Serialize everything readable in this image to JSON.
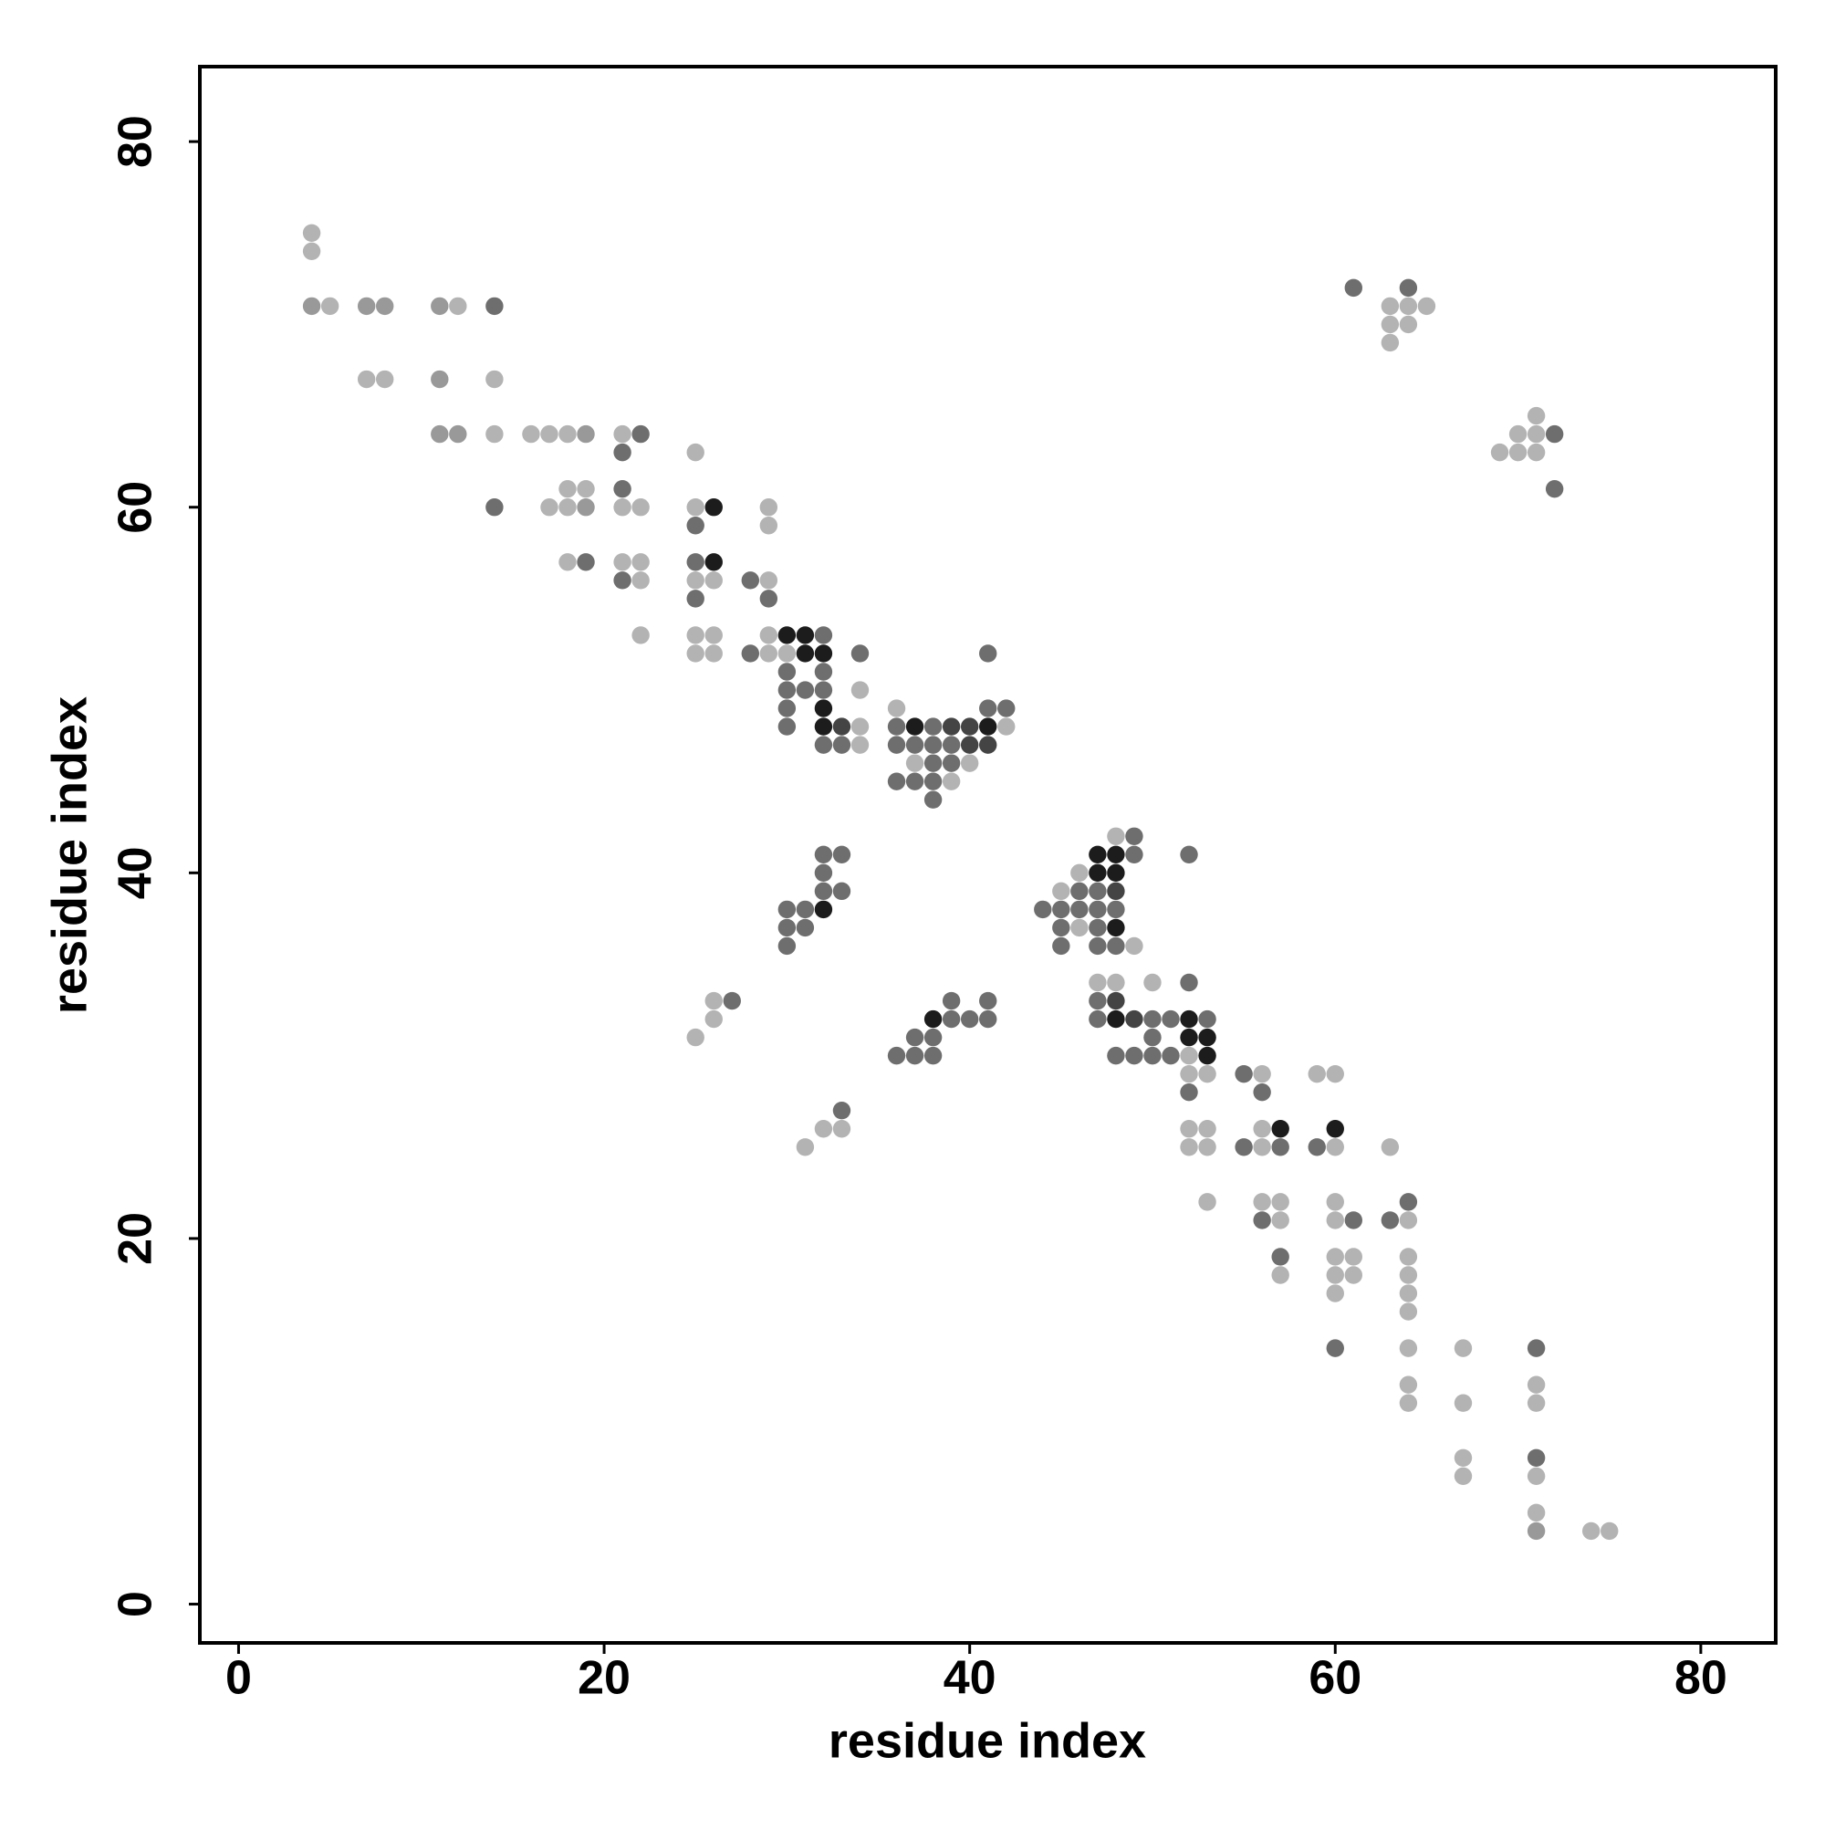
{
  "chart_data": {
    "type": "scatter",
    "xlabel": "residue index",
    "ylabel": "residue index",
    "xlim": [
      -2.12,
      84.1
    ],
    "ylim": [
      -2.12,
      84.1
    ],
    "xticks": [
      0,
      20,
      40,
      60,
      80
    ],
    "yticks": [
      0,
      20,
      40,
      60,
      80
    ],
    "grid": false,
    "series": [
      {
        "color": "#b3b3b3",
        "x": [
          4,
          4,
          5,
          12,
          63,
          64,
          65,
          63,
          64,
          63,
          7,
          8,
          14,
          71,
          14,
          16,
          17,
          18,
          21,
          70,
          71,
          25,
          69,
          70,
          71,
          18,
          19,
          17,
          18,
          21,
          22,
          25,
          29,
          29,
          18,
          21,
          22,
          22,
          25,
          26,
          29,
          22,
          25,
          26,
          29,
          25,
          26,
          29,
          30,
          34,
          36,
          34,
          42,
          34,
          37,
          40,
          39,
          48,
          46,
          45,
          46,
          49,
          47,
          48,
          50,
          26,
          26,
          25,
          52,
          52,
          53,
          56,
          59,
          60,
          32,
          33,
          52,
          53,
          56,
          31,
          52,
          53,
          56,
          60,
          63,
          53,
          56,
          57,
          60,
          57,
          60,
          64,
          60,
          61,
          64,
          57,
          60,
          61,
          64,
          60,
          64,
          64,
          64,
          67,
          64,
          71,
          64,
          67,
          71,
          67,
          67,
          71,
          71,
          74,
          75
        ],
        "y": [
          75,
          74,
          71,
          71,
          71,
          71,
          71,
          70,
          70,
          69,
          67,
          67,
          67,
          65,
          64,
          64,
          64,
          64,
          64,
          64,
          64,
          63,
          63,
          63,
          63,
          61,
          61,
          60,
          60,
          60,
          60,
          60,
          60,
          59,
          57,
          57,
          57,
          56,
          56,
          56,
          56,
          53,
          53,
          53,
          53,
          52,
          52,
          52,
          52,
          50,
          49,
          48,
          48,
          47,
          46,
          46,
          45,
          42,
          40,
          39,
          37,
          36,
          34,
          34,
          34,
          33,
          32,
          31,
          30,
          29,
          29,
          29,
          29,
          29,
          26,
          26,
          26,
          26,
          26,
          25,
          25,
          25,
          25,
          25,
          25,
          22,
          22,
          22,
          22,
          21,
          21,
          21,
          19,
          19,
          19,
          18,
          18,
          18,
          18,
          17,
          17,
          16,
          14,
          14,
          12,
          12,
          11,
          11,
          11,
          8,
          7,
          7,
          5,
          4,
          4
        ]
      },
      {
        "color": "#999999",
        "x": [
          4,
          7,
          8,
          11,
          11,
          11,
          12,
          19,
          19,
          71
        ],
        "y": [
          71,
          71,
          71,
          71,
          67,
          64,
          64,
          64,
          60,
          4
        ]
      },
      {
        "color": "#6e6e6e",
        "x": [
          61,
          64,
          14,
          22,
          72,
          21,
          21,
          72,
          14,
          25,
          19,
          25,
          21,
          28,
          25,
          29,
          32,
          28,
          34,
          41,
          30,
          32,
          30,
          31,
          32,
          30,
          41,
          42,
          30,
          36,
          38,
          32,
          33,
          36,
          37,
          38,
          39,
          38,
          39,
          36,
          37,
          38,
          38,
          49,
          32,
          33,
          49,
          52,
          32,
          32,
          33,
          46,
          47,
          30,
          31,
          44,
          45,
          46,
          47,
          48,
          30,
          31,
          45,
          47,
          30,
          45,
          47,
          48,
          52,
          27,
          39,
          41,
          47,
          39,
          40,
          41,
          47,
          50,
          51,
          53,
          37,
          38,
          50,
          36,
          37,
          38,
          48,
          49,
          50,
          51,
          55,
          52,
          56,
          33,
          55,
          57,
          59,
          64,
          56,
          61,
          63,
          57,
          60,
          71,
          71
        ],
        "y": [
          72,
          72,
          71,
          64,
          64,
          63,
          61,
          61,
          60,
          59,
          57,
          57,
          56,
          56,
          55,
          55,
          53,
          52,
          52,
          52,
          51,
          51,
          50,
          50,
          50,
          49,
          49,
          49,
          48,
          48,
          48,
          47,
          47,
          47,
          47,
          47,
          47,
          46,
          46,
          45,
          45,
          45,
          44,
          42,
          41,
          41,
          41,
          41,
          40,
          39,
          39,
          39,
          39,
          38,
          38,
          38,
          38,
          38,
          38,
          38,
          37,
          37,
          37,
          37,
          36,
          36,
          36,
          36,
          34,
          33,
          33,
          33,
          33,
          32,
          32,
          32,
          32,
          32,
          32,
          32,
          31,
          31,
          31,
          30,
          30,
          30,
          30,
          30,
          30,
          30,
          29,
          28,
          28,
          27,
          25,
          25,
          25,
          22,
          21,
          21,
          21,
          19,
          14,
          14,
          8
        ]
      },
      {
        "color": "#444444",
        "x": [
          33,
          39,
          40,
          40,
          41,
          48,
          48,
          49
        ],
        "y": [
          48,
          48,
          48,
          47,
          47,
          39,
          33,
          32
        ]
      },
      {
        "color": "#1c1c1c",
        "x": [
          26,
          26,
          30,
          31,
          31,
          32,
          32,
          32,
          37,
          41,
          47,
          48,
          47,
          48,
          32,
          48,
          38,
          48,
          52,
          52,
          53,
          53,
          57,
          60
        ],
        "y": [
          60,
          57,
          53,
          53,
          52,
          52,
          49,
          48,
          48,
          48,
          41,
          41,
          40,
          40,
          38,
          37,
          32,
          32,
          32,
          31,
          31,
          30,
          26,
          26
        ]
      }
    ]
  }
}
